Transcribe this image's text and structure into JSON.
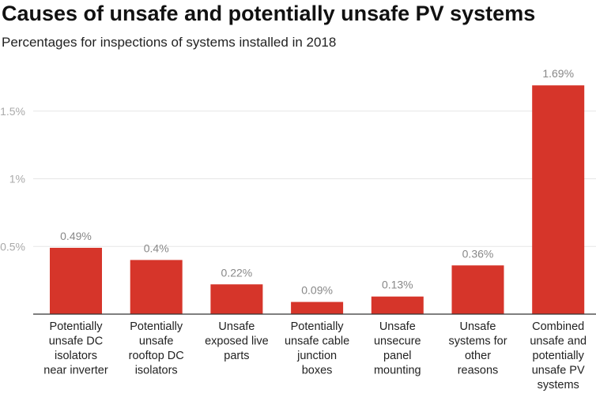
{
  "chart_data": {
    "type": "bar",
    "title": "Causes of unsafe and potentially unsafe PV systems",
    "subtitle": "Percentages for inspections of systems installed in 2018",
    "xlabel": "",
    "ylabel": "",
    "ylim": [
      0,
      1.7
    ],
    "yticks": [
      0.5,
      1,
      1.5
    ],
    "ytick_labels": [
      "0.5%",
      "1%",
      "1.5%"
    ],
    "grid": true,
    "color": "#d6352a",
    "categories": [
      [
        "Potentially",
        "unsafe DC",
        "isolators",
        "near inverter"
      ],
      [
        "Potentially",
        "unsafe",
        "rooftop DC",
        "isolators"
      ],
      [
        "Unsafe",
        "exposed live",
        "parts"
      ],
      [
        "Potentially",
        "unsafe cable",
        "junction",
        "boxes"
      ],
      [
        "Unsafe",
        "unsecure",
        "panel",
        "mounting"
      ],
      [
        "Unsafe",
        "systems for",
        "other",
        "reasons"
      ],
      [
        "Combined",
        "unsafe and",
        "potentially",
        "unsafe PV",
        "systems"
      ]
    ],
    "values": [
      0.49,
      0.4,
      0.22,
      0.09,
      0.13,
      0.36,
      1.69
    ],
    "data_labels": [
      "0.49%",
      "0.4%",
      "0.22%",
      "0.09%",
      "0.13%",
      "0.36%",
      "1.69%"
    ]
  }
}
